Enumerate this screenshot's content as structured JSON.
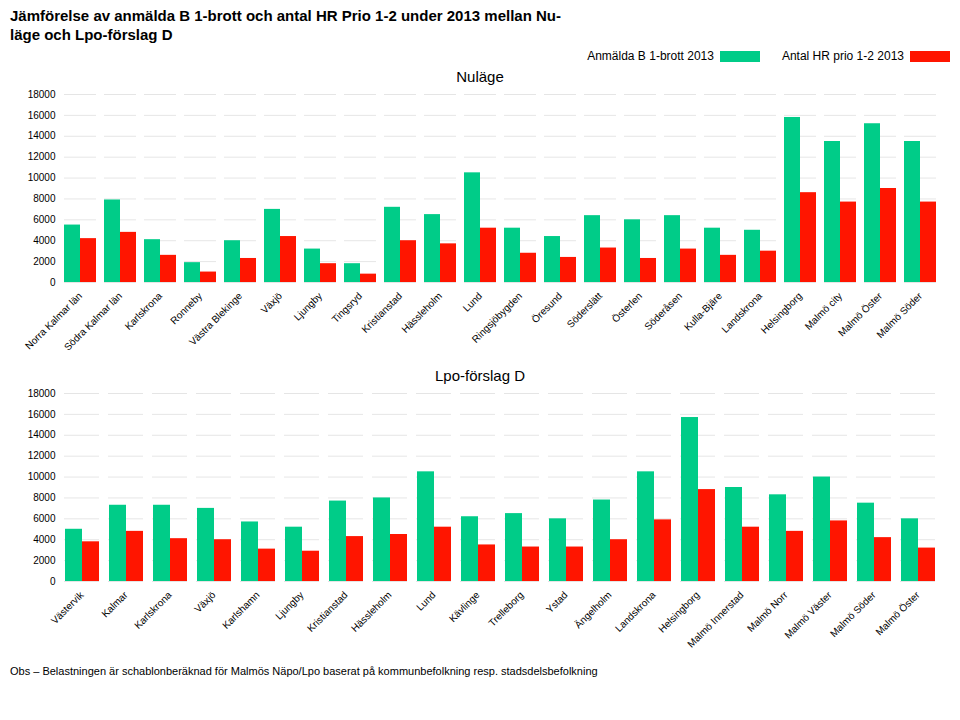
{
  "title": "Jämförelse av anmälda B 1-brott och antal HR Prio 1-2 under 2013 mellan Nu-\nläge och Lpo-förslag D",
  "caption": "Obs – Belastningen är schablonberäknad för Malmös Näpo/Lpo baserat på kommunbefolkning resp. stadsdelsbefolkning",
  "chart_data": [
    {
      "type": "bar",
      "title": "Nuläge",
      "legend": "upper right",
      "grid": true,
      "categories": [
        "Norra Kalmar län",
        "Södra Kalmar län",
        "Karlskrona",
        "Ronneby",
        "Västra Blekinge",
        "Växjö",
        "Ljungby",
        "Tingsryd",
        "Kristianstad",
        "Hässleholm",
        "Lund",
        "Ringsjöbygden",
        "Öresund",
        "Söderslätt",
        "Österlen",
        "Söderåsen",
        "Kulla-Bjäre",
        "Landskrona",
        "Helsingborg",
        "Malmö city",
        "Malmö Öster",
        "Malmö Söder"
      ],
      "series": [
        {
          "name": "Anmälda B 1-brott 2013",
          "color": "#00CC88",
          "values": [
            5500,
            7900,
            4100,
            1900,
            4000,
            7000,
            3200,
            1800,
            7200,
            6500,
            10500,
            5200,
            4400,
            6400,
            6000,
            6400,
            5200,
            5000,
            15800,
            13500,
            15200,
            13500
          ]
        },
        {
          "name": "Antal HR prio 1-2 2013",
          "color": "#FF1500",
          "values": [
            4200,
            4800,
            2600,
            1000,
            2300,
            4400,
            1800,
            800,
            4000,
            3700,
            5200,
            2800,
            2400,
            3300,
            2300,
            3200,
            2600,
            3000,
            8600,
            7700,
            9000,
            7700
          ]
        }
      ],
      "ylim": [
        0,
        18000
      ],
      "yticks": [
        0,
        2000,
        4000,
        6000,
        8000,
        10000,
        12000,
        14000,
        16000,
        18000
      ]
    },
    {
      "type": "bar",
      "title": "Lpo-förslag D",
      "grid": true,
      "categories": [
        "Västervik",
        "Kalmar",
        "Karlskrona",
        "Växjö",
        "Karlshamn",
        "Ljungby",
        "Kristianstad",
        "Hässleholm",
        "Lund",
        "Kävlinge",
        "Trelleborg",
        "Ystad",
        "Ängelholm",
        "Landskrona",
        "Helsingborg",
        "Malmö Innerstad",
        "Malmö Norr",
        "Malmö Väster",
        "Malmö Söder",
        "Malmö Öster"
      ],
      "series": [
        {
          "name": "Anmälda B 1-brott 2013",
          "color": "#00CC88",
          "values": [
            5000,
            7300,
            7300,
            7000,
            5700,
            5200,
            7700,
            8000,
            10500,
            6200,
            6500,
            6000,
            7800,
            10500,
            15700,
            9000,
            8300,
            10000,
            7500,
            6000
          ]
        },
        {
          "name": "Antal HR prio 1-2 2013",
          "color": "#FF1500",
          "values": [
            3800,
            4800,
            4100,
            4000,
            3100,
            2900,
            4300,
            4500,
            5200,
            3500,
            3300,
            3300,
            4000,
            5900,
            8800,
            5200,
            4800,
            5800,
            4200,
            3200
          ]
        }
      ],
      "ylim": [
        0,
        18000
      ],
      "yticks": [
        0,
        2000,
        4000,
        6000,
        8000,
        10000,
        12000,
        14000,
        16000,
        18000
      ]
    }
  ]
}
